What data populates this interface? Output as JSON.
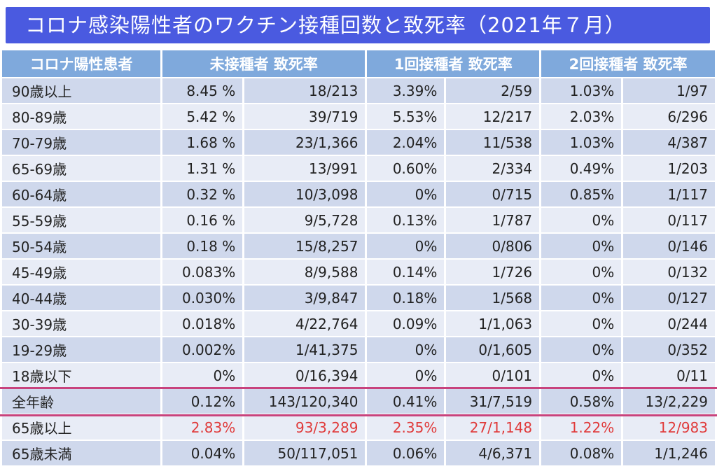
{
  "title": "コロナ感染陽性者のワクチン接種回数と致死率（2021年７月）",
  "headers": [
    "コロナ陽性患者",
    "未接種者 致死率",
    "1回接種者 致死率",
    "2回接種者 致死率"
  ],
  "rows": [
    {
      "label": "90歳以上",
      "c1": "8.45 %",
      "c2": "18/213",
      "c3": "3.39%",
      "c4": "2/59",
      "c5": "1.03%",
      "c6": "1/97"
    },
    {
      "label": "80-89歳",
      "c1": "5.42 %",
      "c2": "39/719",
      "c3": "5.53%",
      "c4": "12/217",
      "c5": "2.03%",
      "c6": "6/296"
    },
    {
      "label": "70-79歳",
      "c1": "1.68 %",
      "c2": "23/1,366",
      "c3": "2.04%",
      "c4": "11/538",
      "c5": "1.03%",
      "c6": "4/387"
    },
    {
      "label": "65-69歳",
      "c1": "1.31 %",
      "c2": "13/991",
      "c3": "0.60%",
      "c4": "2/334",
      "c5": "0.49%",
      "c6": "1/203"
    },
    {
      "label": "60-64歳",
      "c1": "0.32 %",
      "c2": "10/3,098",
      "c3": "0%",
      "c4": "0/715",
      "c5": "0.85%",
      "c6": "1/117"
    },
    {
      "label": "55-59歳",
      "c1": "0.16 %",
      "c2": "9/5,728",
      "c3": "0.13%",
      "c4": "1/787",
      "c5": "0%",
      "c6": "0/117"
    },
    {
      "label": "50-54歳",
      "c1": "0.18 %",
      "c2": "15/8,257",
      "c3": "0%",
      "c4": "0/806",
      "c5": "0%",
      "c6": "0/146"
    },
    {
      "label": "45-49歳",
      "c1": "0.083%",
      "c2": "8/9,588",
      "c3": "0.14%",
      "c4": "1/726",
      "c5": "0%",
      "c6": "0/132"
    },
    {
      "label": "40-44歳",
      "c1": "0.030%",
      "c2": "3/9,847",
      "c3": "0.18%",
      "c4": "1/568",
      "c5": "0%",
      "c6": "0/127"
    },
    {
      "label": "30-39歳",
      "c1": "0.018%",
      "c2": "4/22,764",
      "c3": "0.09%",
      "c4": "1/1,063",
      "c5": "0%",
      "c6": "0/244"
    },
    {
      "label": "19-29歳",
      "c1": "0.002%",
      "c2": "1/41,375",
      "c3": "0%",
      "c4": "0/1,605",
      "c5": "0%",
      "c6": "0/352"
    },
    {
      "label": "18歳以下",
      "c1": "0%",
      "c2": "0/16,394",
      "c3": "0%",
      "c4": "0/101",
      "c5": "0%",
      "c6": "0/11"
    },
    {
      "label": "全年齢",
      "c1": "0.12%",
      "c2": "143/120,340",
      "c3": "0.41%",
      "c4": "31/7,519",
      "c5": "0.58%",
      "c6": "13/2,229"
    },
    {
      "label": "65歳以上",
      "c1": "2.83%",
      "c2": "93/3,289",
      "c3": "2.35%",
      "c4": "27/1,148",
      "c5": "1.22%",
      "c6": "12/983"
    },
    {
      "label": "65歳未満",
      "c1": "0.04%",
      "c2": "50/117,051",
      "c3": "0.06%",
      "c4": "4/6,371",
      "c5": "0.08%",
      "c6": "1/1,246"
    }
  ],
  "colors": {
    "title_bg": "#4a5ae0",
    "header_bg": "#7fa9dc",
    "highlight_line": "#c8437d",
    "red_text": "#e03a3a"
  }
}
